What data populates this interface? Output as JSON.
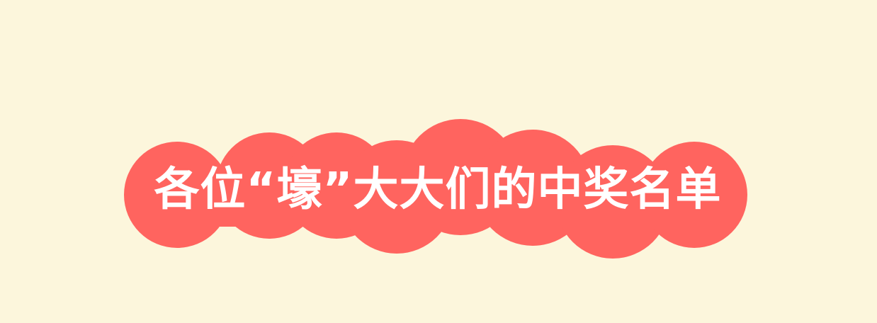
{
  "page": {
    "background_color": "#fcf6dc"
  },
  "banner": {
    "title": "各位“壕”大大们的中奖名单",
    "cloud_color": "#ff645f",
    "text_color": "#ffffff"
  }
}
